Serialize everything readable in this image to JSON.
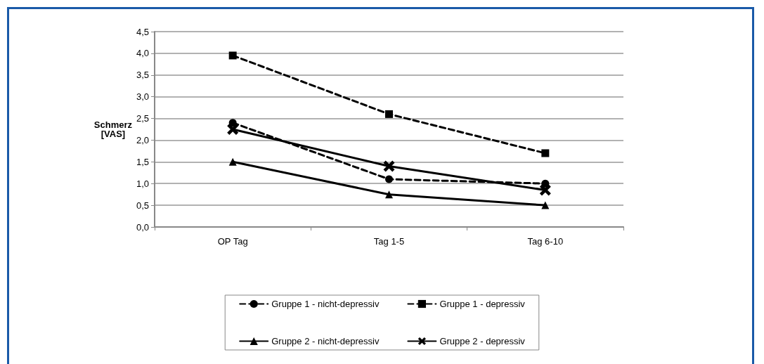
{
  "chart_data": {
    "type": "line",
    "ylabel": "Schmerz\n[VAS]",
    "categories": [
      "OP Tag",
      "Tag 1-5",
      "Tag 6-10"
    ],
    "series": [
      {
        "name": "Gruppe 1 - nicht-depressiv",
        "color": "#000000",
        "marker": "circle",
        "line_style": "dashed",
        "values": [
          2.4,
          1.1,
          1.0
        ]
      },
      {
        "name": "Gruppe 1 - depressiv",
        "color": "#000000",
        "marker": "square",
        "line_style": "dashed",
        "values": [
          3.95,
          2.6,
          1.7
        ]
      },
      {
        "name": "Gruppe 2 - nicht-depressiv",
        "color": "#000000",
        "marker": "triangle",
        "line_style": "solid",
        "values": [
          1.5,
          0.75,
          0.5
        ]
      },
      {
        "name": "Gruppe 2 - depressiv",
        "color": "#000000",
        "marker": "cross",
        "line_style": "solid",
        "values": [
          2.25,
          1.4,
          0.85
        ]
      }
    ],
    "ylim": [
      0,
      4.5
    ],
    "yticks": [
      {
        "value": 0,
        "label": "0,0"
      },
      {
        "value": 0.5,
        "label": "0,5"
      },
      {
        "value": 1,
        "label": "1,0"
      },
      {
        "value": 1.5,
        "label": "1,5"
      },
      {
        "value": 2,
        "label": "2,0"
      },
      {
        "value": 2.5,
        "label": "2,5"
      },
      {
        "value": 3,
        "label": "3,0"
      },
      {
        "value": 3.5,
        "label": "3,5"
      },
      {
        "value": 4,
        "label": "4,0"
      },
      {
        "value": 4.5,
        "label": "4,5"
      }
    ],
    "grid": "y",
    "legend": "bottom"
  }
}
